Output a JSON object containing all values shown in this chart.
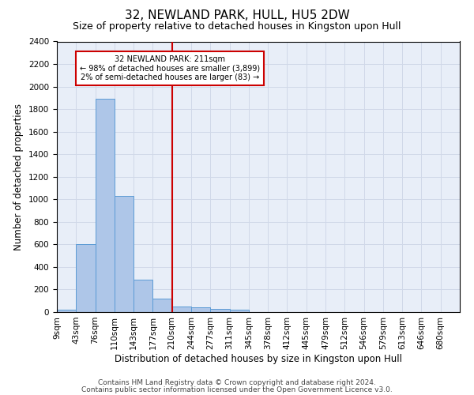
{
  "title": "32, NEWLAND PARK, HULL, HU5 2DW",
  "subtitle": "Size of property relative to detached houses in Kingston upon Hull",
  "xlabel": "Distribution of detached houses by size in Kingston upon Hull",
  "ylabel": "Number of detached properties",
  "footer_line1": "Contains HM Land Registry data © Crown copyright and database right 2024.",
  "footer_line2": "Contains public sector information licensed under the Open Government Licence v3.0.",
  "bin_labels": [
    "9sqm",
    "43sqm",
    "76sqm",
    "110sqm",
    "143sqm",
    "177sqm",
    "210sqm",
    "244sqm",
    "277sqm",
    "311sqm",
    "345sqm",
    "378sqm",
    "412sqm",
    "445sqm",
    "479sqm",
    "512sqm",
    "546sqm",
    "579sqm",
    "613sqm",
    "646sqm",
    "680sqm"
  ],
  "bar_values": [
    20,
    600,
    1890,
    1030,
    290,
    120,
    50,
    45,
    30,
    20,
    0,
    0,
    0,
    0,
    0,
    0,
    0,
    0,
    0,
    0
  ],
  "bar_color": "#aec6e8",
  "bar_edge_color": "#5b9bd5",
  "property_line_x": 6,
  "property_line_color": "#cc0000",
  "ylim": [
    0,
    2400
  ],
  "yticks": [
    0,
    200,
    400,
    600,
    800,
    1000,
    1200,
    1400,
    1600,
    1800,
    2000,
    2200,
    2400
  ],
  "annotation_line1": "32 NEWLAND PARK: 211sqm",
  "annotation_line2": "← 98% of detached houses are smaller (3,899)",
  "annotation_line3": "2% of semi-detached houses are larger (83) →",
  "annotation_box_color": "#cc0000",
  "grid_color": "#d0d8e8",
  "bg_color": "#e8eef8",
  "title_fontsize": 11,
  "subtitle_fontsize": 9,
  "axis_label_fontsize": 8.5,
  "tick_fontsize": 7.5,
  "footer_fontsize": 6.5
}
